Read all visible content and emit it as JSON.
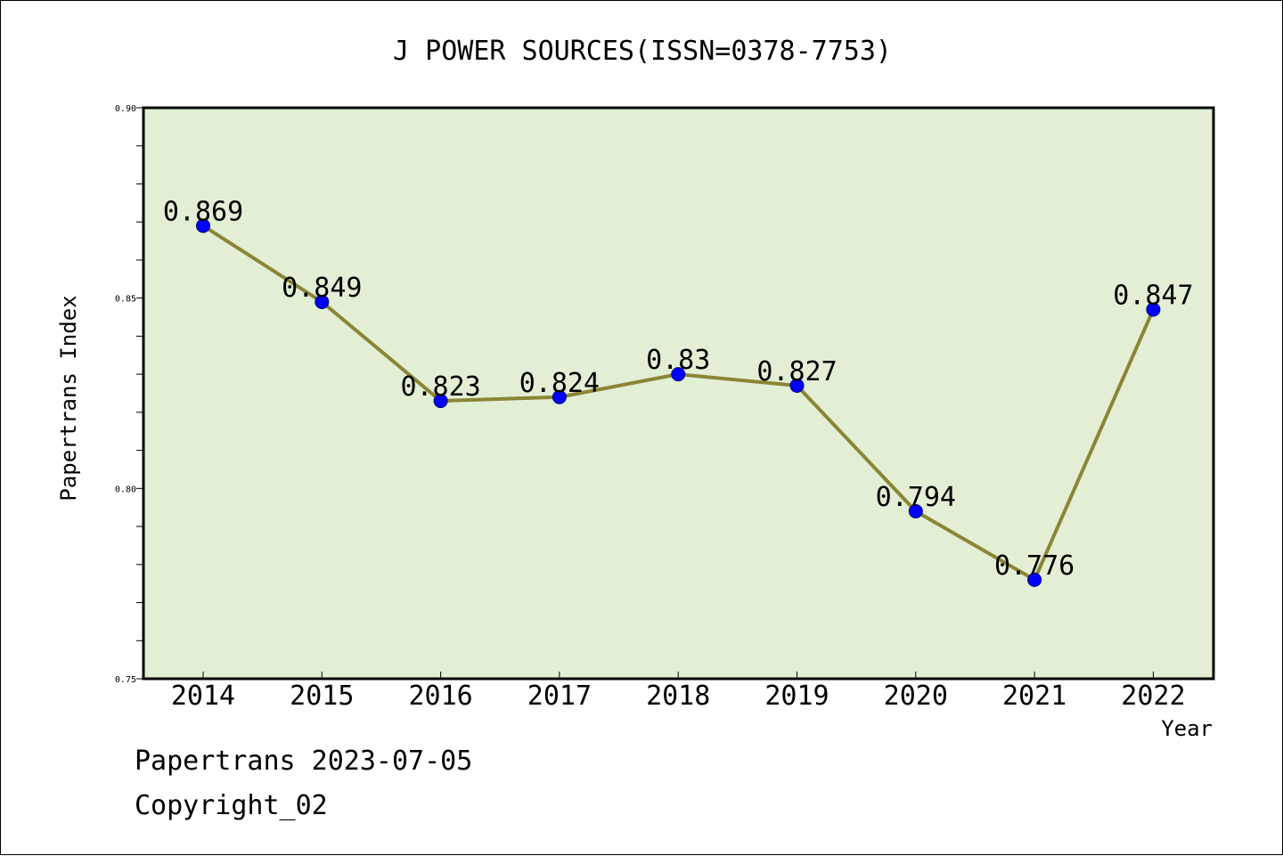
{
  "chart_data": {
    "type": "line",
    "title": "J POWER SOURCES(ISSN=0378-7753)",
    "xlabel": "Year",
    "ylabel": "Papertrans Index",
    "categories": [
      "2014",
      "2015",
      "2016",
      "2017",
      "2018",
      "2019",
      "2020",
      "2021",
      "2022"
    ],
    "values": [
      0.869,
      0.849,
      0.823,
      0.824,
      0.83,
      0.827,
      0.794,
      0.776,
      0.847
    ],
    "data_labels": [
      "0.869",
      "0.849",
      "0.823",
      "0.824",
      "0.83",
      "0.827",
      "0.794",
      "0.776",
      "0.847"
    ],
    "ylim": [
      0.75,
      0.9
    ],
    "yticks": [
      "0.75",
      "0.80",
      "0.85",
      "0.90"
    ],
    "grid": false,
    "colors": {
      "plot_bg": "#e2efd5",
      "line": "#8b8535",
      "marker": "#0000ff"
    }
  },
  "footer": {
    "source": "Papertrans 2023-07-05",
    "copyright": "Copyright_02"
  }
}
